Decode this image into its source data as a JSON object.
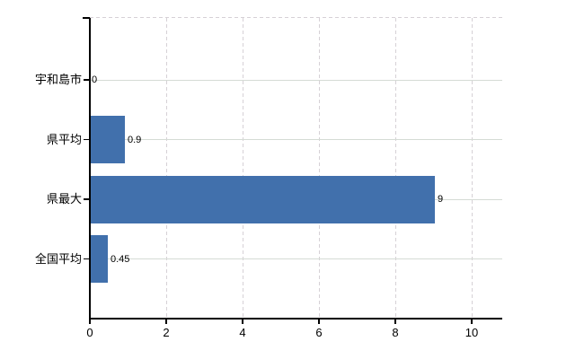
{
  "page": {
    "background": "#ffffff"
  },
  "chart_data": {
    "type": "bar",
    "orientation": "horizontal",
    "title": "",
    "xlabel": "",
    "ylabel": "",
    "categories": [
      "宇和島市",
      "県平均",
      "県最大",
      "全国平均"
    ],
    "values": [
      0,
      0.9,
      9,
      0.45
    ],
    "value_labels": [
      "0",
      "0.9",
      "9",
      "0.45"
    ],
    "x_ticks": [
      {
        "value": 0,
        "label": "0"
      },
      {
        "value": 2,
        "label": "2"
      },
      {
        "value": 4,
        "label": "4"
      },
      {
        "value": 6,
        "label": "6"
      },
      {
        "value": 8,
        "label": "8"
      },
      {
        "value": 10,
        "label": "10"
      }
    ],
    "xlim": [
      0,
      10.8
    ],
    "grid": true,
    "legend": "none",
    "colors": {
      "bar": "#4170ac",
      "axis": "#000000",
      "grid_horizontal": "#d5dbd5",
      "grid_vertical_dashed": "#d6d1d6",
      "text": "#000000"
    }
  }
}
